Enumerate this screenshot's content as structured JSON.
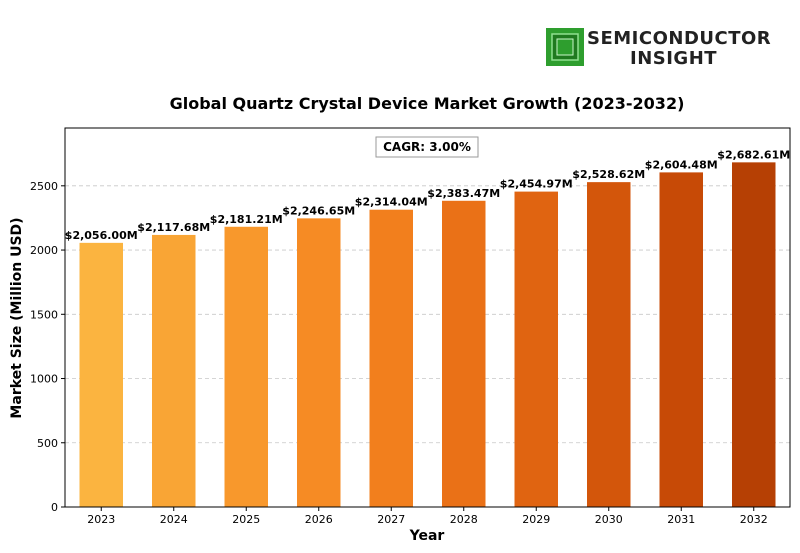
{
  "logo": {
    "line1": "SEMICONDUCTOR",
    "line2": "INSIGHT",
    "icon": "chip-icon",
    "icon_color": "#2e9e2e"
  },
  "chart_data": {
    "type": "bar",
    "title": "Global Quartz Crystal Device Market Growth (2023-2032)",
    "xlabel": "Year",
    "ylabel": "Market Size (Million USD)",
    "categories": [
      "2023",
      "2024",
      "2025",
      "2026",
      "2027",
      "2028",
      "2029",
      "2030",
      "2031",
      "2032"
    ],
    "values": [
      2056.0,
      2117.68,
      2181.21,
      2246.65,
      2314.04,
      2383.47,
      2454.97,
      2528.62,
      2604.48,
      2682.61
    ],
    "data_labels": [
      "$2,056.00M",
      "$2,117.68M",
      "$2,181.21M",
      "$2,246.65M",
      "$2,314.04M",
      "$2,383.47M",
      "$2,454.97M",
      "$2,528.62M",
      "$2,604.48M",
      "$2,682.61M"
    ],
    "yticks": [
      0,
      500,
      1000,
      1500,
      2000,
      2500
    ],
    "ylim": [
      0,
      2950
    ],
    "grid": "horizontal dashed",
    "annotation": "CAGR: 3.00%",
    "bar_colors": [
      "#fbb440",
      "#f9a535",
      "#f8982c",
      "#f68b24",
      "#f27f1d",
      "#ea7117",
      "#e06411",
      "#d3560b",
      "#c74a06",
      "#b64004"
    ]
  }
}
